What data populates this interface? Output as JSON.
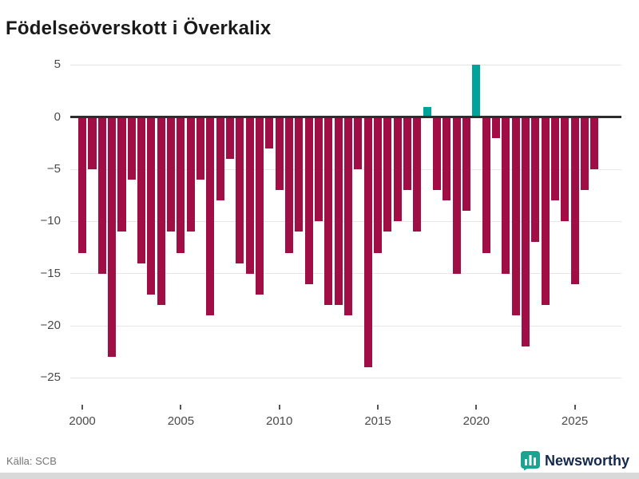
{
  "header": {
    "title": "Födelseöverskott i Överkalix"
  },
  "footer": {
    "source_label": "Källa: SCB",
    "brand_name": "Newsworthy"
  },
  "colors": {
    "negative_bar": "#a00e45",
    "positive_bar": "#00a39c",
    "grid": "#e7e7e7",
    "zero_line": "#2d2d2d",
    "axis_text": "#4a4a4a",
    "brand_icon": "#1aa390",
    "brand_text": "#13284b"
  },
  "chart_data": {
    "type": "bar",
    "title": "Födelseöverskott i Överkalix",
    "xlabel": "",
    "ylabel": "",
    "ylim": [
      -25,
      5
    ],
    "grid": "horizontal",
    "legend": "none",
    "y_ticks": [
      5,
      0,
      -5,
      -10,
      -15,
      -20,
      -25
    ],
    "x_ticks": [
      "2000",
      "2005",
      "2010",
      "2015",
      "2020",
      "2025"
    ],
    "periods": [
      "2000-H1",
      "2000-H2",
      "2001-H1",
      "2001-H2",
      "2002-H1",
      "2002-H2",
      "2003-H1",
      "2003-H2",
      "2004-H1",
      "2004-H2",
      "2005-H1",
      "2005-H2",
      "2006-H1",
      "2006-H2",
      "2007-H1",
      "2007-H2",
      "2008-H1",
      "2008-H2",
      "2009-H1",
      "2009-H2",
      "2010-H1",
      "2010-H2",
      "2011-H1",
      "2011-H2",
      "2012-H1",
      "2012-H2",
      "2013-H1",
      "2013-H2",
      "2014-H1",
      "2014-H2",
      "2015-H1",
      "2015-H2",
      "2016-H1",
      "2016-H2",
      "2017-H1",
      "2017-H2",
      "2018-H1",
      "2018-H2",
      "2019-H1",
      "2019-H2",
      "2020-H1",
      "2020-H2",
      "2021-H1",
      "2021-H2",
      "2022-H1",
      "2022-H2",
      "2023-H1",
      "2023-H2",
      "2024-H1",
      "2024-H2",
      "2025-H1",
      "2025-H2",
      "2026-H1"
    ],
    "values": [
      -13,
      -5,
      -15,
      -23,
      -11,
      -6,
      -14,
      -17,
      -18,
      -11,
      -13,
      -11,
      -6,
      -19,
      -8,
      -4,
      -14,
      -15,
      -17,
      -3,
      -7,
      -13,
      -11,
      -16,
      -10,
      -18,
      -18,
      -19,
      -5,
      -24,
      -13,
      -11,
      -10,
      -7,
      -11,
      1,
      -7,
      -8,
      -15,
      -9,
      5,
      -13,
      -2,
      -15,
      -19,
      -22,
      -12,
      -18,
      -8,
      -10,
      -16,
      -7,
      -5
    ]
  }
}
